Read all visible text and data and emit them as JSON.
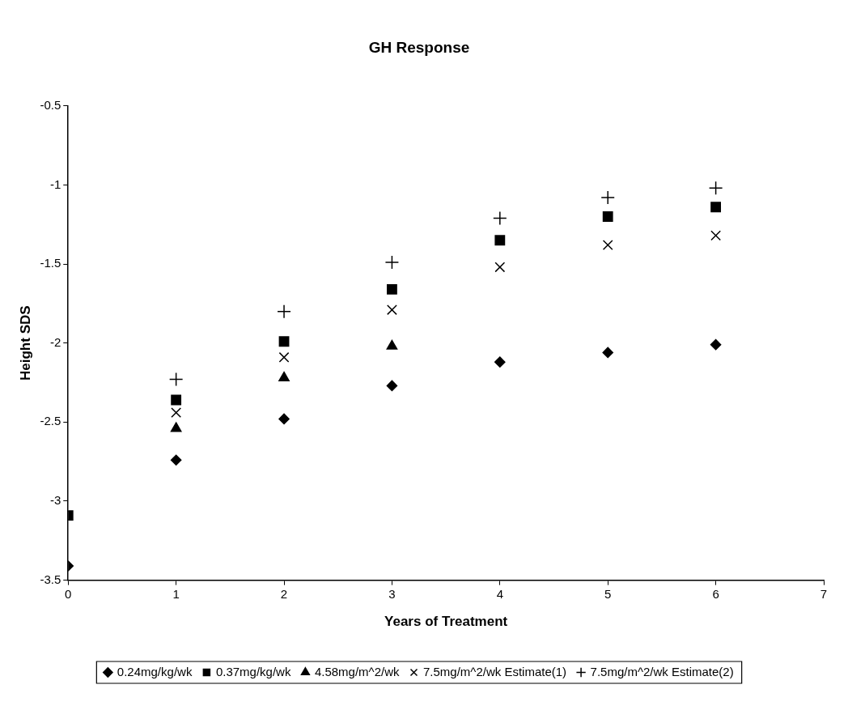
{
  "chart_data": {
    "type": "scatter",
    "title": "GH Response",
    "xlabel": "Years of Treatment",
    "ylabel": "Height SDS",
    "xlim": [
      0,
      7
    ],
    "xticks": [
      0,
      1,
      2,
      3,
      4,
      5,
      6,
      7
    ],
    "ylim": [
      -3.5,
      -0.5
    ],
    "yticks": [
      -3.5,
      -3,
      -2.5,
      -2,
      -1.5,
      -1,
      -0.5
    ],
    "grid": false,
    "legend": "bottom",
    "x": [
      0,
      1,
      2,
      3,
      4,
      5,
      6
    ],
    "series": [
      {
        "name": "0.24mg/kg/wk",
        "color": "#000000",
        "marker": "diamond",
        "values": [
          -3.41,
          -2.74,
          -2.48,
          -2.27,
          -2.12,
          -2.06,
          -2.01
        ]
      },
      {
        "name": "0.37mg/kg/wk",
        "color": "#000000",
        "marker": "square",
        "values": [
          -3.09,
          -2.36,
          -1.99,
          -1.66,
          -1.35,
          -1.2,
          -1.14
        ]
      },
      {
        "name": "4.58mg/m^2/wk",
        "color": "#000000",
        "marker": "triangle",
        "values": [
          null,
          -2.54,
          -2.22,
          -2.02,
          null,
          null,
          null
        ]
      },
      {
        "name": "7.5mg/m^2/wk Estimate(1)",
        "color": "#000000",
        "marker": "x",
        "values": [
          null,
          -2.44,
          -2.09,
          -1.79,
          -1.52,
          -1.38,
          -1.32
        ]
      },
      {
        "name": "7.5mg/m^2/wk Estimate(2)",
        "color": "#000000",
        "marker": "cross",
        "values": [
          null,
          -2.23,
          -1.8,
          -1.49,
          -1.21,
          -1.08,
          -1.02
        ]
      }
    ]
  }
}
